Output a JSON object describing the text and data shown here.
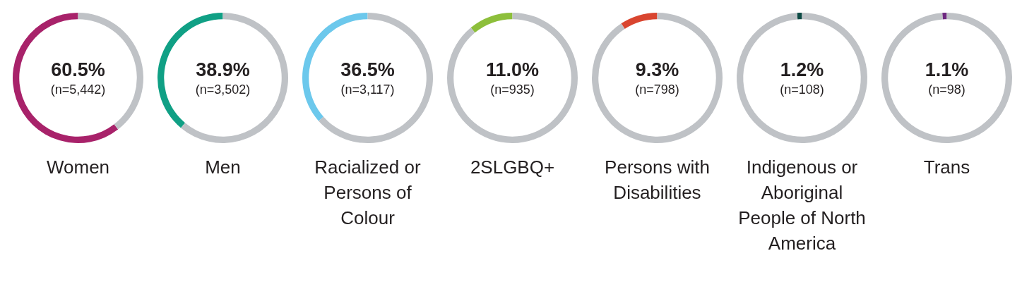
{
  "chart_data": [
    {
      "type": "donut",
      "xlabel": "Women",
      "categories": [
        null,
        null
      ],
      "values": [
        60.5,
        39.5
      ],
      "colors": [
        "#a8226a",
        "#bfc2c6"
      ],
      "value_labels": [
        "60.5%",
        null
      ],
      "annotations": [
        "(n=5,442)"
      ]
    },
    {
      "type": "donut",
      "xlabel": "Men",
      "categories": [
        null,
        null
      ],
      "values": [
        38.9,
        61.1
      ],
      "colors": [
        "#10a085",
        "#bfc2c6"
      ],
      "value_labels": [
        "38.9%",
        null
      ],
      "annotations": [
        "(n=3,502)"
      ]
    },
    {
      "type": "donut",
      "xlabel": "Racialized or Persons of Colour",
      "categories": [
        null,
        null
      ],
      "values": [
        36.5,
        63.5
      ],
      "colors": [
        "#6cc8ec",
        "#bfc2c6"
      ],
      "value_labels": [
        "36.5%",
        null
      ],
      "annotations": [
        "(n=3,117)"
      ]
    },
    {
      "type": "donut",
      "xlabel": "2SLGBQ+",
      "categories": [
        null,
        null
      ],
      "values": [
        11.0,
        89.0
      ],
      "colors": [
        "#8dbf3b",
        "#bfc2c6"
      ],
      "value_labels": [
        "11.0%",
        null
      ],
      "annotations": [
        "(n=935)"
      ]
    },
    {
      "type": "donut",
      "xlabel": "Persons with Disabilities",
      "categories": [
        null,
        null
      ],
      "values": [
        9.3,
        90.7
      ],
      "colors": [
        "#d9452f",
        "#bfc2c6"
      ],
      "value_labels": [
        "9.3%",
        null
      ],
      "annotations": [
        "(n=798)"
      ]
    },
    {
      "type": "donut",
      "xlabel": "Indigenous or Aboriginal People of North America",
      "categories": [
        null,
        null
      ],
      "values": [
        1.2,
        98.8
      ],
      "colors": [
        "#0d4a44",
        "#bfc2c6"
      ],
      "value_labels": [
        "1.2%",
        null
      ],
      "annotations": [
        "(n=108)"
      ]
    },
    {
      "type": "donut",
      "xlabel": "Trans",
      "categories": [
        null,
        null
      ],
      "values": [
        1.1,
        98.9
      ],
      "colors": [
        "#6e2a80",
        "#bfc2c6"
      ],
      "value_labels": [
        "1.1%",
        null
      ],
      "annotations": [
        "(n=98)"
      ]
    }
  ]
}
